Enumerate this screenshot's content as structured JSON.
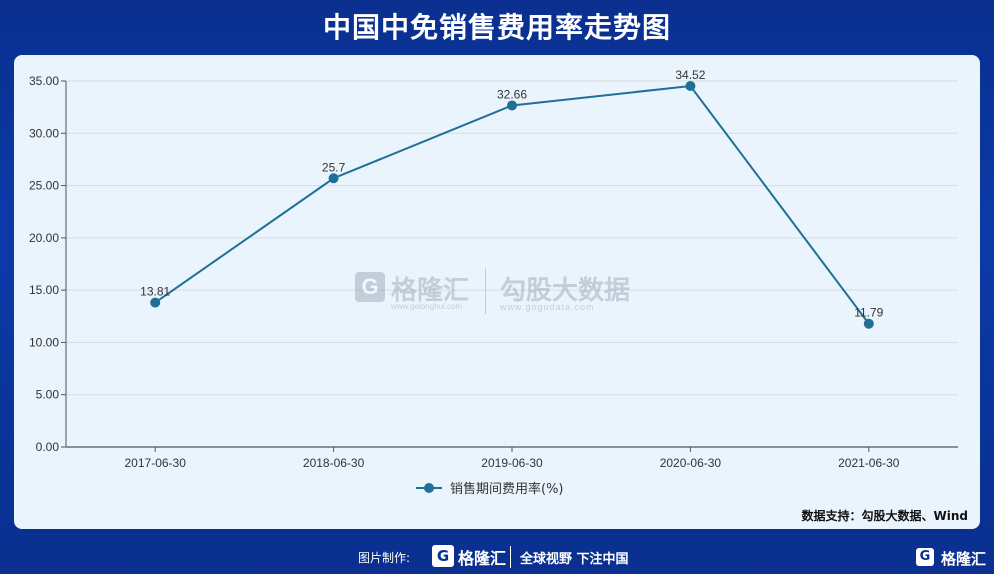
{
  "title": "中国中免销售费用率走势图",
  "chart_data": {
    "type": "line",
    "categories": [
      "2017-06-30",
      "2018-06-30",
      "2019-06-30",
      "2020-06-30",
      "2021-06-30"
    ],
    "series": [
      {
        "name": "销售期间费用率(%)",
        "values": [
          13.81,
          25.7,
          32.66,
          34.52,
          11.79
        ],
        "labels": [
          "13.81",
          "25.7",
          "32.66",
          "34.52",
          "11.79"
        ]
      }
    ],
    "y_ticks": [
      "35.00",
      "30.00",
      "25.00",
      "20.00",
      "15.00",
      "10.00",
      "5.00",
      "0.00"
    ],
    "ylim": [
      0,
      35
    ],
    "grid": true,
    "legend_position": "bottom-center",
    "line_color": "#1f6f99"
  },
  "source": "数据支持：勾股大数据、Wind",
  "watermark": {
    "logo_glyph": "G",
    "brand": "格隆汇",
    "brand_url": "www.gelonghui.com",
    "partner": "勾股大数据",
    "partner_url": "www.gogudata.com"
  },
  "footer": {
    "credit": "图片制作:",
    "logo_glyph": "G",
    "brand": "格隆汇",
    "slogan": "全球视野 下注中国"
  },
  "corner": {
    "logo_glyph": "G",
    "brand": "格隆汇"
  }
}
